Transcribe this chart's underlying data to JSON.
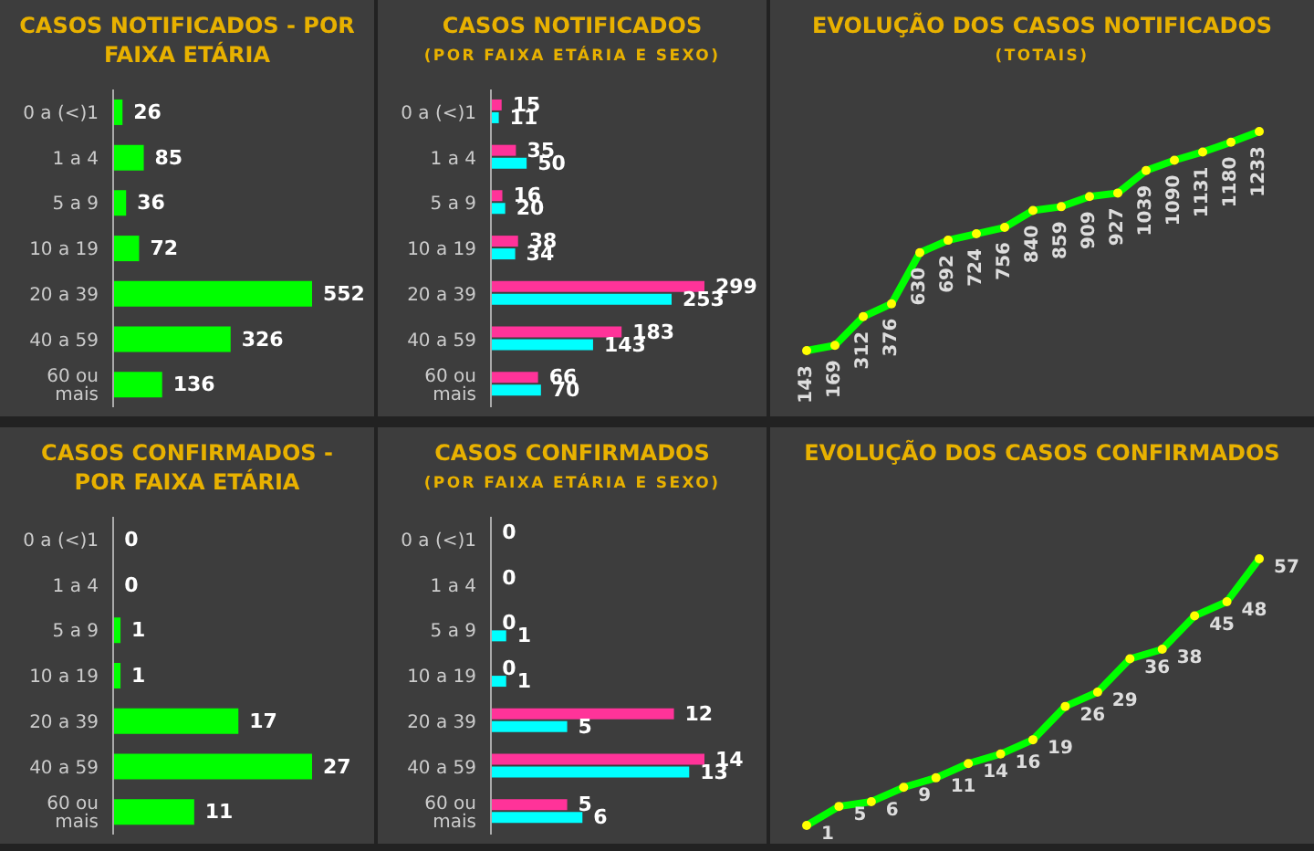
{
  "chart_data": [
    {
      "type": "bar",
      "orientation": "horizontal",
      "title": "CASOS NOTIFICADOS - POR FAIXA ETÁRIA",
      "categories": [
        "0 a (<)1",
        "1 a 4",
        "5 a 9",
        "10 a 19",
        "20 a 39",
        "40 a 59",
        "60 ou mais"
      ],
      "series": [
        {
          "color": "#00ff00",
          "values": [
            26,
            85,
            36,
            72,
            552,
            326,
            136
          ]
        }
      ],
      "data_labels": true
    },
    {
      "type": "bar",
      "orientation": "horizontal",
      "title": "CASOS NOTIFICADOS",
      "subtitle": "(POR FAIXA ETÁRIA E SEXO)",
      "categories": [
        "0 a (<)1",
        "1 a 4",
        "5 a 9",
        "10 a 19",
        "20 a 39",
        "40 a 59",
        "60 ou mais"
      ],
      "series": [
        {
          "color": "#ff3399",
          "values": [
            15,
            35,
            16,
            38,
            299,
            183,
            66
          ]
        },
        {
          "color": "#00ffff",
          "values": [
            11,
            50,
            20,
            34,
            253,
            143,
            70
          ]
        }
      ],
      "data_labels": true
    },
    {
      "type": "line",
      "title": "EVOLUÇÃO DOS CASOS NOTIFICADOS",
      "subtitle": "(TOTAIS)",
      "categories": [
        null,
        null,
        null,
        null,
        null,
        null,
        null,
        null,
        null,
        null,
        null,
        null,
        null,
        null,
        null,
        null,
        null
      ],
      "series": [
        {
          "color": "#00ff00",
          "values": [
            143,
            169,
            312,
            376,
            630,
            692,
            724,
            756,
            840,
            859,
            909,
            927,
            1039,
            1090,
            1131,
            1180,
            1233
          ]
        }
      ],
      "data_labels": true,
      "marker": "circle"
    },
    {
      "type": "bar",
      "orientation": "horizontal",
      "title": "CASOS CONFIRMADOS - POR FAIXA ETÁRIA",
      "categories": [
        "0 a (<)1",
        "1 a 4",
        "5 a 9",
        "10 a 19",
        "20 a 39",
        "40 a 59",
        "60 ou mais"
      ],
      "series": [
        {
          "color": "#00ff00",
          "values": [
            0,
            0,
            1,
            1,
            17,
            27,
            11
          ]
        }
      ],
      "data_labels": true
    },
    {
      "type": "bar",
      "orientation": "horizontal",
      "title": "CASOS CONFIRMADOS",
      "subtitle": "(POR FAIXA ETÁRIA E SEXO)",
      "categories": [
        "0 a (<)1",
        "1 a 4",
        "5 a 9",
        "10 a 19",
        "20 a 39",
        "40 a 59",
        "60 ou mais"
      ],
      "series": [
        {
          "color": "#ff3399",
          "values": [
            0,
            0,
            0,
            0,
            12,
            14,
            5
          ],
          "value_labels": [
            "0",
            "0",
            "0",
            "0",
            "12",
            "14",
            "5"
          ]
        },
        {
          "color": "#00ffff",
          "values": [
            0,
            0,
            1,
            1,
            5,
            13,
            6
          ],
          "value_labels": [
            null,
            null,
            "1",
            "1",
            "5",
            "13",
            "6"
          ]
        }
      ]
    },
    {
      "type": "line",
      "title": "EVOLUÇÃO DOS CASOS CONFIRMADOS",
      "categories": [
        null,
        null,
        null,
        null,
        null,
        null,
        null,
        null,
        null,
        null,
        null,
        null,
        null,
        null,
        null
      ],
      "series": [
        {
          "color": "#00ff00",
          "values": [
            1,
            5,
            6,
            9,
            11,
            14,
            16,
            19,
            26,
            29,
            36,
            38,
            45,
            48,
            57
          ]
        }
      ],
      "data_labels": true,
      "marker": "circle"
    }
  ]
}
